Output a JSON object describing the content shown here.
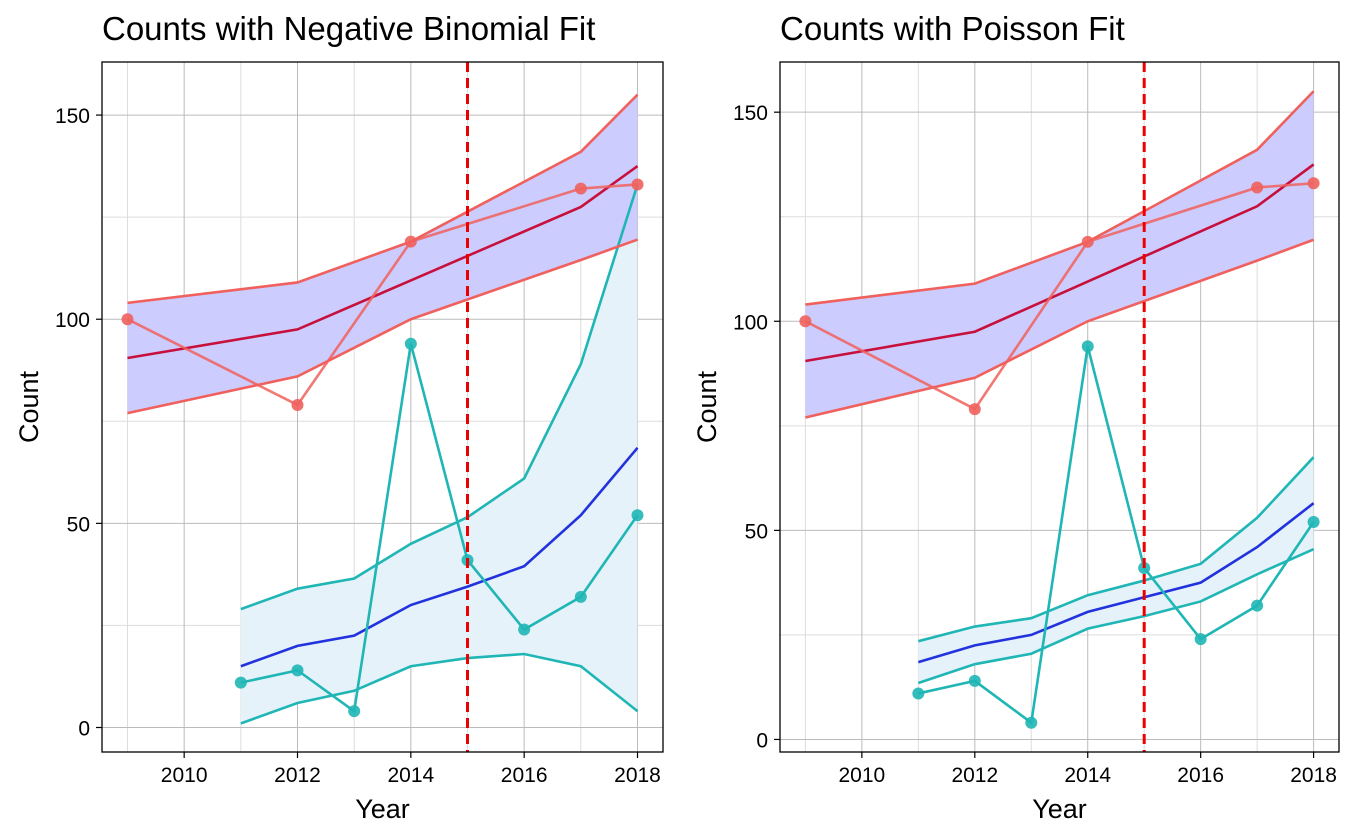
{
  "chart_data": [
    {
      "type": "line",
      "title": "Counts with Negative Binomial Fit",
      "xlabel": "Year",
      "ylabel": "Count",
      "xlim": [
        2008.55,
        2018.45
      ],
      "ylim": [
        -6,
        163
      ],
      "x_ticks": [
        2010,
        2012,
        2014,
        2016,
        2018
      ],
      "y_ticks": [
        0,
        50,
        100,
        150
      ],
      "grid": true,
      "legend": "none",
      "vline": {
        "x": 2015,
        "color": "#EE0000",
        "style": "dashed"
      },
      "colors": {
        "red": "#F0605C",
        "teal": "#1FB6B5",
        "fit_red": "#C8103C",
        "fit_blue": "#2233DD",
        "band_red": "#CCCCFF",
        "band_teal": "#E6F2FA"
      },
      "series": [
        {
          "group": "red",
          "role": "observed",
          "x": [
            2009,
            2012,
            2014,
            2017,
            2018
          ],
          "values": [
            100,
            79,
            119,
            132,
            133
          ]
        },
        {
          "group": "red",
          "role": "fit",
          "x": [
            2009,
            2012,
            2014,
            2017,
            2018
          ],
          "values": [
            90.5,
            97.5,
            109.5,
            127.5,
            137.5
          ]
        },
        {
          "group": "red",
          "role": "upper",
          "x": [
            2009,
            2012,
            2014,
            2017,
            2018
          ],
          "values": [
            104,
            109,
            119,
            141,
            155
          ]
        },
        {
          "group": "red",
          "role": "lower",
          "x": [
            2009,
            2012,
            2014,
            2017,
            2018
          ],
          "values": [
            77,
            86,
            100,
            114.5,
            119.5
          ]
        },
        {
          "group": "teal",
          "role": "observed",
          "x": [
            2011,
            2012,
            2013,
            2014,
            2015,
            2016,
            2017,
            2018
          ],
          "values": [
            11,
            14,
            4,
            94,
            41,
            24,
            32,
            52
          ]
        },
        {
          "group": "teal",
          "role": "fit",
          "x": [
            2011,
            2012,
            2013,
            2014,
            2015,
            2016,
            2017,
            2018
          ],
          "values": [
            15,
            20,
            22.5,
            30,
            34.5,
            39.5,
            52,
            68.5
          ]
        },
        {
          "group": "teal",
          "role": "upper",
          "x": [
            2011,
            2012,
            2013,
            2014,
            2015,
            2016,
            2017,
            2018
          ],
          "values": [
            29,
            34,
            36.5,
            45,
            51.5,
            61,
            89,
            133
          ]
        },
        {
          "group": "teal",
          "role": "lower",
          "x": [
            2011,
            2012,
            2013,
            2014,
            2015,
            2016,
            2017,
            2018
          ],
          "values": [
            1,
            6,
            9,
            15,
            17,
            18,
            15,
            4
          ]
        }
      ]
    },
    {
      "type": "line",
      "title": "Counts with Poisson Fit",
      "xlabel": "Year",
      "ylabel": "Count",
      "xlim": [
        2008.55,
        2018.45
      ],
      "ylim": [
        -3,
        162
      ],
      "x_ticks": [
        2010,
        2012,
        2014,
        2016,
        2018
      ],
      "y_ticks": [
        0,
        50,
        100,
        150
      ],
      "grid": true,
      "legend": "none",
      "vline": {
        "x": 2015,
        "color": "#EE0000",
        "style": "dashed"
      },
      "colors": {
        "red": "#F0605C",
        "teal": "#1FB6B5",
        "fit_red": "#C8103C",
        "fit_blue": "#2233DD",
        "band_red": "#CCCCFF",
        "band_teal": "#E6F2FA"
      },
      "series": [
        {
          "group": "red",
          "role": "observed",
          "x": [
            2009,
            2012,
            2014,
            2017,
            2018
          ],
          "values": [
            100,
            79,
            119,
            132,
            133
          ]
        },
        {
          "group": "red",
          "role": "fit",
          "x": [
            2009,
            2012,
            2014,
            2017,
            2018
          ],
          "values": [
            90.5,
            97.5,
            109.5,
            127.5,
            137.5
          ]
        },
        {
          "group": "red",
          "role": "upper",
          "x": [
            2009,
            2012,
            2014,
            2017,
            2018
          ],
          "values": [
            104,
            109,
            119,
            141,
            155
          ]
        },
        {
          "group": "red",
          "role": "lower",
          "x": [
            2009,
            2012,
            2014,
            2017,
            2018
          ],
          "values": [
            77,
            86.5,
            100,
            114.5,
            119.5
          ]
        },
        {
          "group": "teal",
          "role": "observed",
          "x": [
            2011,
            2012,
            2013,
            2014,
            2015,
            2016,
            2017,
            2018
          ],
          "values": [
            11,
            14,
            4,
            94,
            41,
            24,
            32,
            52
          ]
        },
        {
          "group": "teal",
          "role": "fit",
          "x": [
            2011,
            2012,
            2013,
            2014,
            2015,
            2016,
            2017,
            2018
          ],
          "values": [
            18.5,
            22.5,
            25,
            30.5,
            34,
            37.5,
            46,
            56.5
          ]
        },
        {
          "group": "teal",
          "role": "upper",
          "x": [
            2011,
            2012,
            2013,
            2014,
            2015,
            2016,
            2017,
            2018
          ],
          "values": [
            23.5,
            27,
            29,
            34.5,
            38,
            42,
            53,
            67.5
          ]
        },
        {
          "group": "teal",
          "role": "lower",
          "x": [
            2011,
            2012,
            2013,
            2014,
            2015,
            2016,
            2017,
            2018
          ],
          "values": [
            13.5,
            18,
            20.5,
            26.5,
            29.5,
            33,
            39.5,
            45.5
          ]
        }
      ]
    }
  ]
}
